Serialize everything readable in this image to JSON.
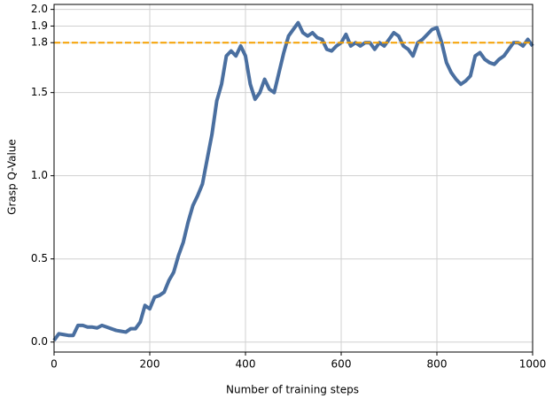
{
  "chart_data": {
    "type": "line",
    "x_label": "Number of training steps",
    "y_label": "Grasp Q-Value",
    "x": [
      0,
      10,
      20,
      30,
      40,
      50,
      60,
      70,
      80,
      90,
      100,
      110,
      120,
      130,
      140,
      150,
      160,
      170,
      180,
      190,
      200,
      210,
      220,
      230,
      240,
      250,
      260,
      270,
      280,
      290,
      300,
      310,
      320,
      330,
      340,
      350,
      360,
      370,
      380,
      390,
      400,
      410,
      420,
      430,
      440,
      450,
      460,
      470,
      480,
      490,
      500,
      510,
      520,
      530,
      540,
      550,
      560,
      570,
      580,
      590,
      600,
      610,
      620,
      630,
      640,
      650,
      660,
      670,
      680,
      690,
      700,
      710,
      720,
      730,
      740,
      750,
      760,
      770,
      780,
      790,
      800,
      810,
      820,
      830,
      840,
      850,
      860,
      870,
      880,
      890,
      900,
      910,
      920,
      930,
      940,
      950,
      960,
      970,
      980,
      990,
      1000
    ],
    "series": [
      {
        "name": "Grasp Q-Value",
        "color": "#4a6fa0",
        "values": [
          0.01,
          0.05,
          0.045,
          0.04,
          0.04,
          0.1,
          0.1,
          0.09,
          0.09,
          0.085,
          0.1,
          0.09,
          0.08,
          0.07,
          0.065,
          0.06,
          0.08,
          0.08,
          0.12,
          0.22,
          0.2,
          0.27,
          0.28,
          0.3,
          0.37,
          0.42,
          0.52,
          0.6,
          0.72,
          0.82,
          0.88,
          0.95,
          1.1,
          1.25,
          1.45,
          1.55,
          1.72,
          1.75,
          1.72,
          1.78,
          1.72,
          1.55,
          1.46,
          1.5,
          1.58,
          1.52,
          1.5,
          1.62,
          1.74,
          1.84,
          1.88,
          1.92,
          1.86,
          1.84,
          1.86,
          1.83,
          1.82,
          1.76,
          1.75,
          1.78,
          1.8,
          1.85,
          1.78,
          1.8,
          1.78,
          1.8,
          1.8,
          1.76,
          1.8,
          1.78,
          1.82,
          1.86,
          1.84,
          1.78,
          1.76,
          1.72,
          1.8,
          1.82,
          1.85,
          1.88,
          1.89,
          1.8,
          1.68,
          1.62,
          1.58,
          1.55,
          1.57,
          1.6,
          1.72,
          1.74,
          1.7,
          1.68,
          1.67,
          1.7,
          1.72,
          1.76,
          1.8,
          1.8,
          1.78,
          1.82,
          1.78
        ]
      }
    ],
    "reference_line": {
      "value": 1.8,
      "color": "#f5a000"
    },
    "xlim": [
      0,
      1000
    ],
    "ylim": [
      -0.06,
      2.03
    ],
    "xticks": [
      0,
      200,
      400,
      600,
      800,
      1000
    ],
    "yticks": [
      {
        "value": 0,
        "label": "0.0"
      },
      0.5,
      {
        "value": 1,
        "label": "1.0"
      },
      1.5,
      1.8,
      1.9,
      {
        "value": 2,
        "label": "2.0"
      }
    ],
    "grid": true
  }
}
